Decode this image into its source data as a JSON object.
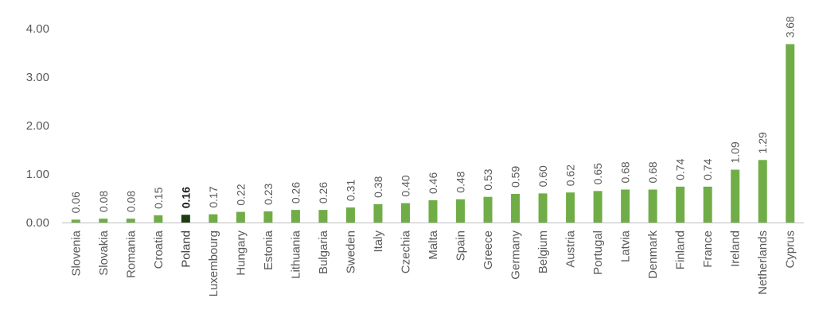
{
  "chart_data": {
    "type": "bar",
    "title": "",
    "xlabel": "",
    "ylabel": "",
    "ylim": [
      0,
      4
    ],
    "yticks": [
      "0.00",
      "1.00",
      "2.00",
      "3.00",
      "4.00"
    ],
    "grid": false,
    "legend": "none",
    "categories": [
      "Slovenia",
      "Slovakia",
      "Romania",
      "Croatia",
      "Poland",
      "Luxembourg",
      "Hungary",
      "Estonia",
      "Lithuania",
      "Bulgaria",
      "Sweden",
      "Italy",
      "Czechia",
      "Malta",
      "Spain",
      "Greece",
      "Germany",
      "Belgium",
      "Austria",
      "Portugal",
      "Latvia",
      "Denmark",
      "Finland",
      "France",
      "Ireland",
      "Netherlands",
      "Cyprus"
    ],
    "values": [
      0.06,
      0.08,
      0.08,
      0.15,
      0.16,
      0.17,
      0.22,
      0.23,
      0.26,
      0.26,
      0.31,
      0.38,
      0.4,
      0.46,
      0.48,
      0.53,
      0.59,
      0.6,
      0.62,
      0.65,
      0.68,
      0.68,
      0.74,
      0.74,
      1.09,
      1.29,
      3.68
    ],
    "value_labels": [
      "0.06",
      "0.08",
      "0.08",
      "0.15",
      "0.16",
      "0.17",
      "0.22",
      "0.23",
      "0.26",
      "0.26",
      "0.31",
      "0.38",
      "0.40",
      "0.46",
      "0.48",
      "0.53",
      "0.59",
      "0.60",
      "0.62",
      "0.65",
      "0.68",
      "0.68",
      "0.74",
      "0.74",
      "1.09",
      "1.29",
      "3.68"
    ],
    "highlight_category": "Poland",
    "colors": {
      "bar": "#70ad47",
      "highlight": "#1e3b12",
      "axis": "#bfbfbf",
      "text": "#595959"
    }
  }
}
